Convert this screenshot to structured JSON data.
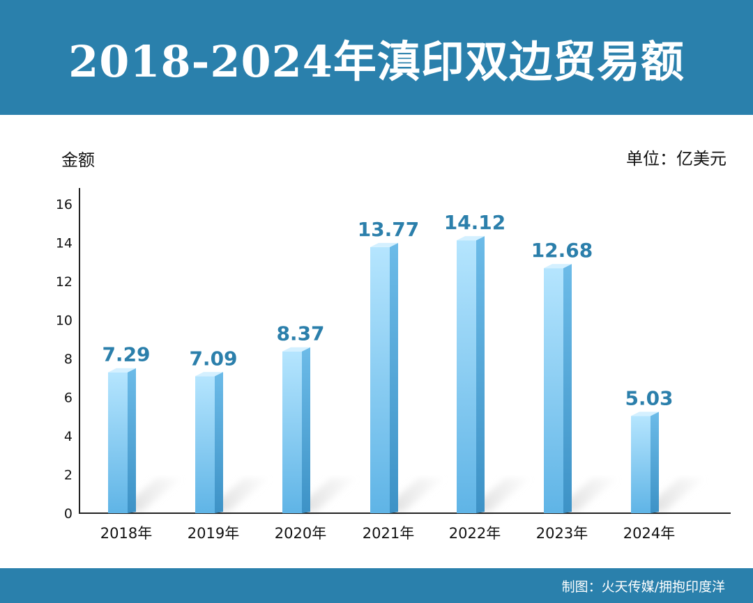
{
  "header": {
    "title": "2018-2024年滇印双边贸易额"
  },
  "chart_data": {
    "type": "bar",
    "title": "2018-2024年滇印双边贸易额",
    "ylabel": "金额",
    "unit": "单位：亿美元",
    "categories": [
      "2018年",
      "2019年",
      "2020年",
      "2021年",
      "2022年",
      "2023年",
      "2024年"
    ],
    "values": [
      7.29,
      7.09,
      8.37,
      13.77,
      14.12,
      12.68,
      5.03
    ],
    "data_labels": [
      "7.29",
      "7.09",
      "8.37",
      "13.77",
      "14.12",
      "12.68",
      "5.03"
    ],
    "yticks": [
      "0",
      "2",
      "4",
      "6",
      "8",
      "10",
      "12",
      "14",
      "16"
    ],
    "ylim": [
      0,
      16
    ],
    "grid": false,
    "legend": "none",
    "colors": {
      "bar_light": "#aee2fd",
      "bar_dark": "#4fa8dc",
      "label": "#2b7fab"
    }
  },
  "footer": {
    "credit": "制图：火天传媒/拥抱印度洋"
  }
}
